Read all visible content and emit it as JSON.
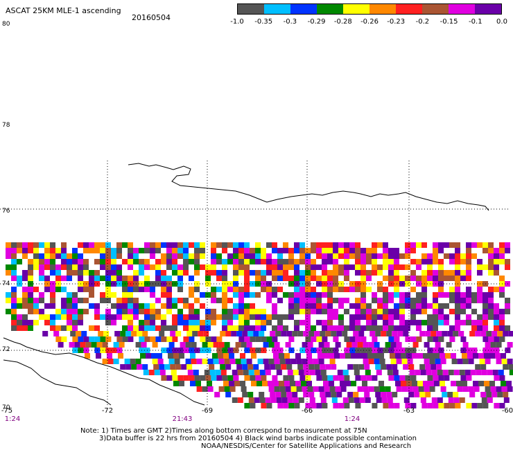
{
  "header": {
    "title": "ASCAT 25KM MLE-1 ascending",
    "date": "20160504"
  },
  "legend": {
    "colors": [
      "#555555",
      "#00bfff",
      "#0033ff",
      "#008800",
      "#ffff00",
      "#ff8800",
      "#ff2020",
      "#aa5533",
      "#e000e0",
      "#6a00a8"
    ],
    "labels": [
      "-1.0",
      "-0.35",
      "-0.3",
      "-0.29",
      "-0.28",
      "-0.26",
      "-0.23",
      "-0.2",
      "-0.15",
      "-0.1",
      "0.0"
    ]
  },
  "axes": {
    "lat_labels": [
      "80",
      "78",
      "76",
      "74",
      "72",
      "70"
    ],
    "lon_labels": [
      "-75",
      "-72",
      "-69",
      "-66",
      "-63",
      "-60"
    ],
    "time_labels": [
      "1:24",
      "21:43",
      "1:24"
    ]
  },
  "notes": {
    "line1": "Note: 1) Times are GMT 2)Times along bottom correspond to measurement at 75N",
    "line2": "3)Data buffer is 22 hrs from 20160504 4) Black wind barbs indicate possible contamination",
    "line3": "NOAA/NESDIS/Center for Satellite Applications and Research"
  }
}
